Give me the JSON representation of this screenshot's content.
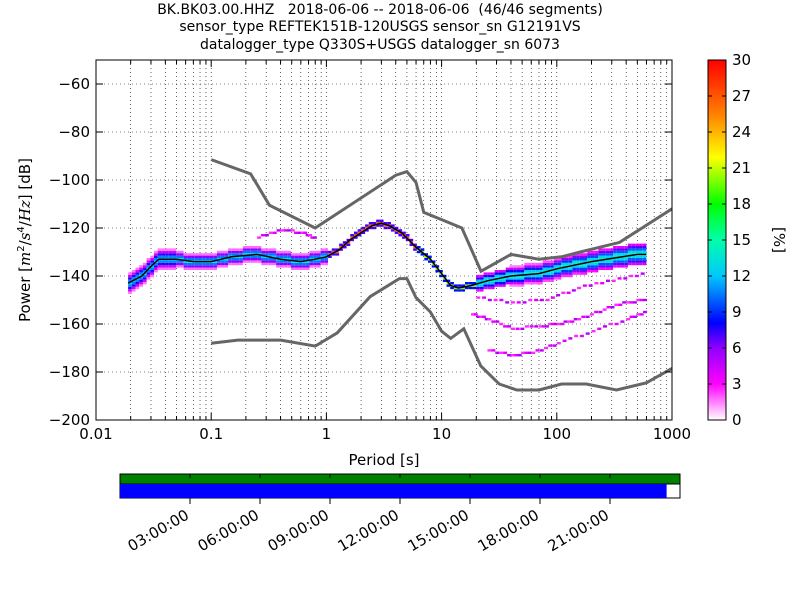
{
  "title_lines": [
    "BK.BK03.00.HHZ   2018-06-06 -- 2018-06-06  (46/46 segments)",
    "sensor_type REFTEK151B-120USGS sensor_sn G12191VS",
    "datalogger_type Q330S+USGS datalogger_sn 6073"
  ],
  "chart_data": {
    "type": "heatmap",
    "xlabel": "Period [s]",
    "ylabel_parts": [
      "Power [",
      "m",
      "2",
      "/",
      "s",
      "4",
      "/",
      "Hz",
      "] [dB]"
    ],
    "xscale": "log",
    "xlim": [
      0.01,
      1000
    ],
    "ylim": [
      -200,
      -50
    ],
    "xticks": [
      {
        "v": 0.01,
        "label": "0.01"
      },
      {
        "v": 0.1,
        "label": "0.1"
      },
      {
        "v": 1,
        "label": "1"
      },
      {
        "v": 10,
        "label": "10"
      },
      {
        "v": 100,
        "label": "100"
      },
      {
        "v": 1000,
        "label": "1000"
      }
    ],
    "yticks": [
      {
        "v": -200,
        "label": "−200"
      },
      {
        "v": -180,
        "label": "−180"
      },
      {
        "v": -160,
        "label": "−160"
      },
      {
        "v": -140,
        "label": "−140"
      },
      {
        "v": -120,
        "label": "−120"
      },
      {
        "v": -100,
        "label": "−100"
      },
      {
        "v": -80,
        "label": "−80"
      },
      {
        "v": -60,
        "label": "−60"
      }
    ],
    "grid": true,
    "colorbar": {
      "label": "[%]",
      "range": [
        0,
        30
      ],
      "ticks": [
        "0",
        "3",
        "6",
        "9",
        "12",
        "15",
        "18",
        "21",
        "24",
        "27",
        "30"
      ]
    },
    "noise_models": [
      {
        "name": "NHNM",
        "points": [
          [
            0.1,
            -91.5
          ],
          [
            0.22,
            -97.4
          ],
          [
            0.32,
            -110.5
          ],
          [
            0.8,
            -120
          ],
          [
            4,
            -98
          ],
          [
            5,
            -96.5
          ],
          [
            6,
            -101
          ],
          [
            7,
            -113.5
          ],
          [
            10,
            -116.5
          ],
          [
            15,
            -120
          ],
          [
            22,
            -138
          ],
          [
            40,
            -131
          ],
          [
            70,
            -133
          ],
          [
            110,
            -132
          ],
          [
            160,
            -130
          ],
          [
            350,
            -126
          ],
          [
            1000,
            -112
          ]
        ]
      },
      {
        "name": "NLNM",
        "points": [
          [
            0.1,
            -168
          ],
          [
            0.17,
            -166.7
          ],
          [
            0.4,
            -166.7
          ],
          [
            0.8,
            -169.2
          ],
          [
            1.24,
            -163.7
          ],
          [
            2.4,
            -148.6
          ],
          [
            4.3,
            -141.1
          ],
          [
            5,
            -141.1
          ],
          [
            6,
            -149
          ],
          [
            8,
            -155
          ],
          [
            10,
            -163
          ],
          [
            12,
            -166
          ],
          [
            15.6,
            -162
          ],
          [
            21.9,
            -177.5
          ],
          [
            31.6,
            -185
          ],
          [
            45,
            -187.5
          ],
          [
            70,
            -187.5
          ],
          [
            110,
            -185
          ],
          [
            180,
            -185
          ],
          [
            330,
            -187.5
          ],
          [
            600,
            -184.5
          ],
          [
            1000,
            -178.5
          ]
        ]
      }
    ],
    "mode_curve": [
      [
        0.019,
        -143
      ],
      [
        0.025,
        -140
      ],
      [
        0.03,
        -136
      ],
      [
        0.035,
        -133
      ],
      [
        0.05,
        -133
      ],
      [
        0.07,
        -134
      ],
      [
        0.1,
        -134
      ],
      [
        0.15,
        -132
      ],
      [
        0.25,
        -131
      ],
      [
        0.4,
        -133
      ],
      [
        0.6,
        -134
      ],
      [
        0.8,
        -133
      ],
      [
        1,
        -132
      ],
      [
        1.3,
        -129
      ],
      [
        1.6,
        -125
      ],
      [
        2,
        -122
      ],
      [
        2.5,
        -119
      ],
      [
        3,
        -118
      ],
      [
        3.5,
        -119
      ],
      [
        4.5,
        -122
      ],
      [
        6,
        -128
      ],
      [
        8,
        -133
      ],
      [
        10,
        -139
      ],
      [
        12,
        -144
      ],
      [
        14,
        -145
      ],
      [
        18,
        -144
      ],
      [
        25,
        -142
      ],
      [
        40,
        -140
      ],
      [
        70,
        -139
      ],
      [
        100,
        -137
      ],
      [
        200,
        -134
      ],
      [
        500,
        -131
      ],
      [
        600,
        -131
      ]
    ],
    "spectrogram_bands": [
      {
        "label": "03:00:00"
      },
      {
        "label": "06:00:00"
      },
      {
        "label": "09:00:00"
      },
      {
        "label": "12:00:00"
      },
      {
        "label": "15:00:00"
      },
      {
        "label": "18:00:00"
      },
      {
        "label": "21:00:00"
      }
    ],
    "data_coverage": {
      "color": "#0000ff",
      "fraction": 0.976
    },
    "gap_coverage": {
      "color": "#008000",
      "fraction": 1.0
    }
  }
}
